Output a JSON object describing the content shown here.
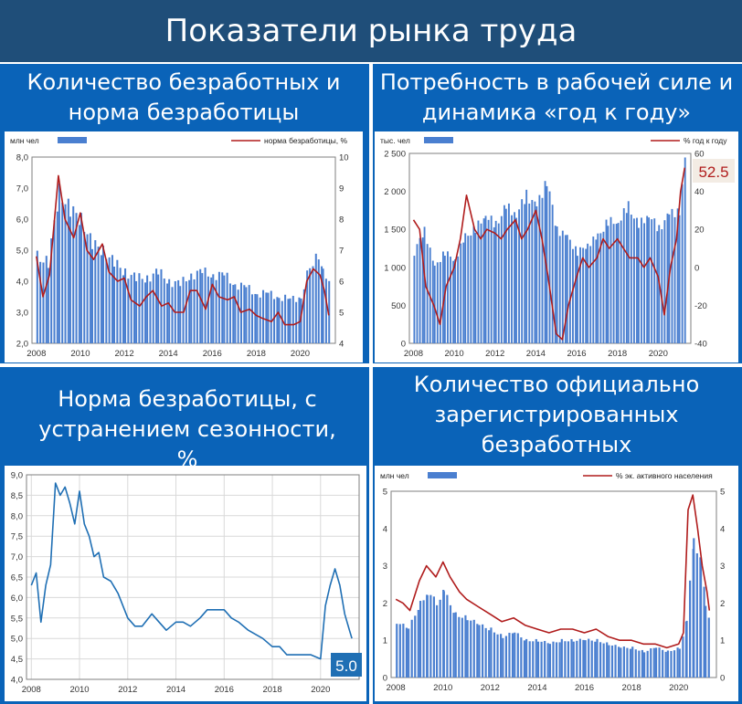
{
  "header": {
    "title": "Показатели рынка труда"
  },
  "panels": {
    "p1": {
      "title": "Количество безработных и норма безработицы"
    },
    "p2": {
      "title": "Потребность в рабочей силе и динамика «год к году»"
    },
    "p3": {
      "title": "Норма безработицы, с устранением сезонности, %"
    },
    "p4": {
      "title": "Количество официально зарегистрированных безработных"
    }
  },
  "colors": {
    "bar": "#4a7fd0",
    "line_red": "#b01c1c",
    "line_blue": "#1f6fb4",
    "header_bg": "#1f4e79",
    "band_bg": "#0a63b8"
  },
  "chart_data": [
    {
      "type": "bar",
      "title": "Количество безработных и норма безработицы",
      "x_ticks": [
        "2008",
        "2010",
        "2012",
        "2014",
        "2016",
        "2018",
        "2020"
      ],
      "y_left_ticks": [
        "2,0",
        "3,0",
        "4,0",
        "5,0",
        "6,0",
        "7,0",
        "8,0"
      ],
      "y_right_ticks": [
        "4",
        "5",
        "6",
        "7",
        "8",
        "9",
        "10"
      ],
      "ylim_left": [
        2,
        8
      ],
      "ylim_right": [
        4,
        10
      ],
      "series": [
        {
          "name": "млн чел",
          "type": "bar",
          "axis": "left",
          "x": [
            2008,
            2008.5,
            2009,
            2009.5,
            2010,
            2010.5,
            2011,
            2011.5,
            2012,
            2012.5,
            2013,
            2013.5,
            2014,
            2014.5,
            2015,
            2015.5,
            2016,
            2016.5,
            2017,
            2017.5,
            2018,
            2018.5,
            2019,
            2019.5,
            2020,
            2020.4,
            2020.8,
            2021,
            2021.3
          ],
          "values": [
            4.8,
            4.6,
            6.9,
            6.3,
            6.0,
            5.2,
            5.0,
            4.6,
            4.3,
            4.1,
            4.1,
            4.3,
            4.0,
            3.9,
            4.2,
            4.3,
            4.2,
            4.2,
            3.9,
            3.8,
            3.6,
            3.6,
            3.5,
            3.4,
            3.5,
            4.5,
            4.8,
            4.5,
            3.8
          ]
        },
        {
          "name": "норма безработицы, %",
          "type": "line",
          "axis": "right",
          "x": [
            2008,
            2008.3,
            2008.6,
            2009,
            2009.3,
            2009.7,
            2010,
            2010.3,
            2010.6,
            2011,
            2011.3,
            2011.7,
            2012,
            2012.3,
            2012.7,
            2013,
            2013.3,
            2013.7,
            2014,
            2014.3,
            2014.7,
            2015,
            2015.3,
            2015.7,
            2016,
            2016.3,
            2016.7,
            2017,
            2017.3,
            2017.7,
            2018,
            2018.3,
            2018.7,
            2019,
            2019.3,
            2019.7,
            2020,
            2020.3,
            2020.6,
            2020.9,
            2021.1,
            2021.3
          ],
          "values": [
            6.8,
            5.5,
            6.2,
            9.4,
            8.0,
            7.4,
            8.2,
            7.0,
            6.7,
            7.2,
            6.3,
            6.0,
            6.1,
            5.4,
            5.2,
            5.5,
            5.7,
            5.2,
            5.3,
            5.0,
            5.0,
            5.7,
            5.7,
            5.1,
            5.9,
            5.5,
            5.4,
            5.5,
            5.0,
            5.1,
            4.9,
            4.8,
            4.7,
            5.0,
            4.6,
            4.6,
            4.7,
            6.0,
            6.4,
            6.2,
            5.7,
            4.9
          ]
        }
      ]
    },
    {
      "type": "bar",
      "title": "Потребность в рабочей силе и динамика «год к году»",
      "x_ticks": [
        "2008",
        "2010",
        "2012",
        "2014",
        "2016",
        "2018",
        "2020"
      ],
      "y_left_ticks": [
        "0",
        "500",
        "1 000",
        "1 500",
        "2 000",
        "2 500"
      ],
      "y_right_ticks": [
        "-40",
        "-20",
        "0",
        "20",
        "40",
        "60"
      ],
      "ylim_left": [
        0,
        2500
      ],
      "ylim_right": [
        -40,
        60
      ],
      "annotation": "52.5",
      "series": [
        {
          "name": "тыс. чел",
          "type": "bar",
          "axis": "left",
          "x": [
            2008,
            2008.5,
            2009,
            2009.5,
            2010,
            2010.5,
            2011,
            2011.5,
            2012,
            2012.5,
            2013,
            2013.5,
            2014,
            2014.5,
            2015,
            2015.5,
            2016,
            2016.5,
            2017,
            2017.5,
            2018,
            2018.5,
            2019,
            2019.5,
            2020,
            2020.5,
            2021,
            2021.3
          ],
          "values": [
            1200,
            1500,
            1000,
            1200,
            1100,
            1400,
            1500,
            1700,
            1550,
            1800,
            1700,
            1950,
            1800,
            2150,
            1500,
            1400,
            1200,
            1300,
            1400,
            1600,
            1600,
            1800,
            1550,
            1700,
            1500,
            1700,
            1750,
            2450
          ]
        },
        {
          "name": "% год к году",
          "type": "line",
          "axis": "right",
          "x": [
            2008,
            2008.3,
            2008.6,
            2009,
            2009.3,
            2009.6,
            2010,
            2010.3,
            2010.6,
            2011,
            2011.3,
            2011.6,
            2012,
            2012.3,
            2012.6,
            2013,
            2013.3,
            2013.6,
            2014,
            2014.3,
            2014.6,
            2015,
            2015.3,
            2015.6,
            2016,
            2016.3,
            2016.6,
            2017,
            2017.3,
            2017.6,
            2018,
            2018.3,
            2018.6,
            2019,
            2019.3,
            2019.6,
            2020,
            2020.3,
            2020.6,
            2020.9,
            2021.1,
            2021.3
          ],
          "values": [
            25,
            20,
            -10,
            -20,
            -30,
            -10,
            0,
            15,
            38,
            20,
            15,
            20,
            18,
            15,
            20,
            25,
            15,
            20,
            30,
            15,
            -5,
            -35,
            -38,
            -20,
            -5,
            5,
            0,
            5,
            15,
            10,
            15,
            10,
            5,
            5,
            0,
            5,
            -5,
            -25,
            0,
            15,
            40,
            52.5
          ]
        }
      ]
    },
    {
      "type": "line",
      "title": "Норма безработицы, с устранением сезонности, %",
      "x_ticks": [
        "2008",
        "2010",
        "2012",
        "2014",
        "2016",
        "2018",
        "2020"
      ],
      "y_ticks": [
        "4,0",
        "4,5",
        "5,0",
        "5,5",
        "6,0",
        "6,5",
        "7,0",
        "7,5",
        "8,0",
        "8,5",
        "9,0"
      ],
      "ylim": [
        4,
        9
      ],
      "annotation": "5.0",
      "series": [
        {
          "x": [
            2008,
            2008.2,
            2008.4,
            2008.6,
            2008.8,
            2009,
            2009.2,
            2009.4,
            2009.6,
            2009.8,
            2010,
            2010.2,
            2010.4,
            2010.6,
            2010.8,
            2011,
            2011.3,
            2011.6,
            2012,
            2012.3,
            2012.6,
            2013,
            2013.3,
            2013.6,
            2014,
            2014.3,
            2014.6,
            2015,
            2015.3,
            2015.6,
            2016,
            2016.3,
            2016.6,
            2017,
            2017.3,
            2017.6,
            2018,
            2018.3,
            2018.6,
            2019,
            2019.3,
            2019.6,
            2020,
            2020.2,
            2020.4,
            2020.6,
            2020.8,
            2021,
            2021.2,
            2021.3
          ],
          "values": [
            6.3,
            6.6,
            5.4,
            6.3,
            6.8,
            8.8,
            8.5,
            8.7,
            8.3,
            7.8,
            8.6,
            7.8,
            7.5,
            7.0,
            7.1,
            6.5,
            6.4,
            6.1,
            5.5,
            5.3,
            5.3,
            5.6,
            5.4,
            5.2,
            5.4,
            5.4,
            5.3,
            5.5,
            5.7,
            5.7,
            5.7,
            5.5,
            5.4,
            5.2,
            5.1,
            5.0,
            4.8,
            4.8,
            4.6,
            4.6,
            4.6,
            4.6,
            4.5,
            5.8,
            6.3,
            6.7,
            6.3,
            5.6,
            5.2,
            5.0
          ]
        }
      ]
    },
    {
      "type": "bar",
      "title": "Количество официально зарегистрированных безработных",
      "x_ticks": [
        "2008",
        "2010",
        "2012",
        "2014",
        "2016",
        "2018",
        "2020"
      ],
      "y_left_ticks": [
        "0",
        "1",
        "2",
        "3",
        "4",
        "5"
      ],
      "y_right_ticks": [
        "0",
        "1",
        "2",
        "3",
        "4",
        "5"
      ],
      "ylim_left": [
        0,
        5
      ],
      "ylim_right": [
        0,
        5
      ],
      "series": [
        {
          "name": "млн чел",
          "type": "bar",
          "axis": "left",
          "x": [
            2008,
            2008.5,
            2009,
            2009.3,
            2009.7,
            2010,
            2010.5,
            2011,
            2011.5,
            2012,
            2012.5,
            2013,
            2013.5,
            2014,
            2014.5,
            2015,
            2015.5,
            2016,
            2016.5,
            2017,
            2017.5,
            2018,
            2018.5,
            2019,
            2019.5,
            2020,
            2020.3,
            2020.6,
            2020.9,
            2021.1,
            2021.3
          ],
          "values": [
            1.5,
            1.3,
            2.0,
            2.3,
            2.0,
            2.3,
            1.7,
            1.6,
            1.4,
            1.3,
            1.1,
            1.2,
            1.0,
            1.0,
            0.9,
            1.0,
            1.0,
            1.0,
            1.0,
            0.9,
            0.8,
            0.8,
            0.7,
            0.8,
            0.7,
            0.8,
            1.5,
            3.7,
            3.2,
            2.0,
            1.4
          ]
        },
        {
          "name": "% эк. активного населения",
          "type": "line",
          "axis": "right",
          "x": [
            2008,
            2008.3,
            2008.6,
            2009,
            2009.3,
            2009.7,
            2010,
            2010.3,
            2010.7,
            2011,
            2011.5,
            2012,
            2012.5,
            2013,
            2013.5,
            2014,
            2014.5,
            2015,
            2015.5,
            2016,
            2016.5,
            2017,
            2017.5,
            2018,
            2018.5,
            2019,
            2019.5,
            2020,
            2020.2,
            2020.4,
            2020.6,
            2020.8,
            2021,
            2021.2,
            2021.3
          ],
          "values": [
            2.1,
            2.0,
            1.8,
            2.6,
            3.0,
            2.7,
            3.1,
            2.7,
            2.3,
            2.1,
            1.9,
            1.7,
            1.5,
            1.6,
            1.4,
            1.3,
            1.2,
            1.3,
            1.3,
            1.2,
            1.3,
            1.1,
            1.0,
            1.0,
            0.9,
            0.9,
            0.8,
            0.9,
            1.2,
            4.5,
            4.9,
            4.0,
            3.0,
            2.3,
            1.8
          ]
        }
      ]
    }
  ]
}
